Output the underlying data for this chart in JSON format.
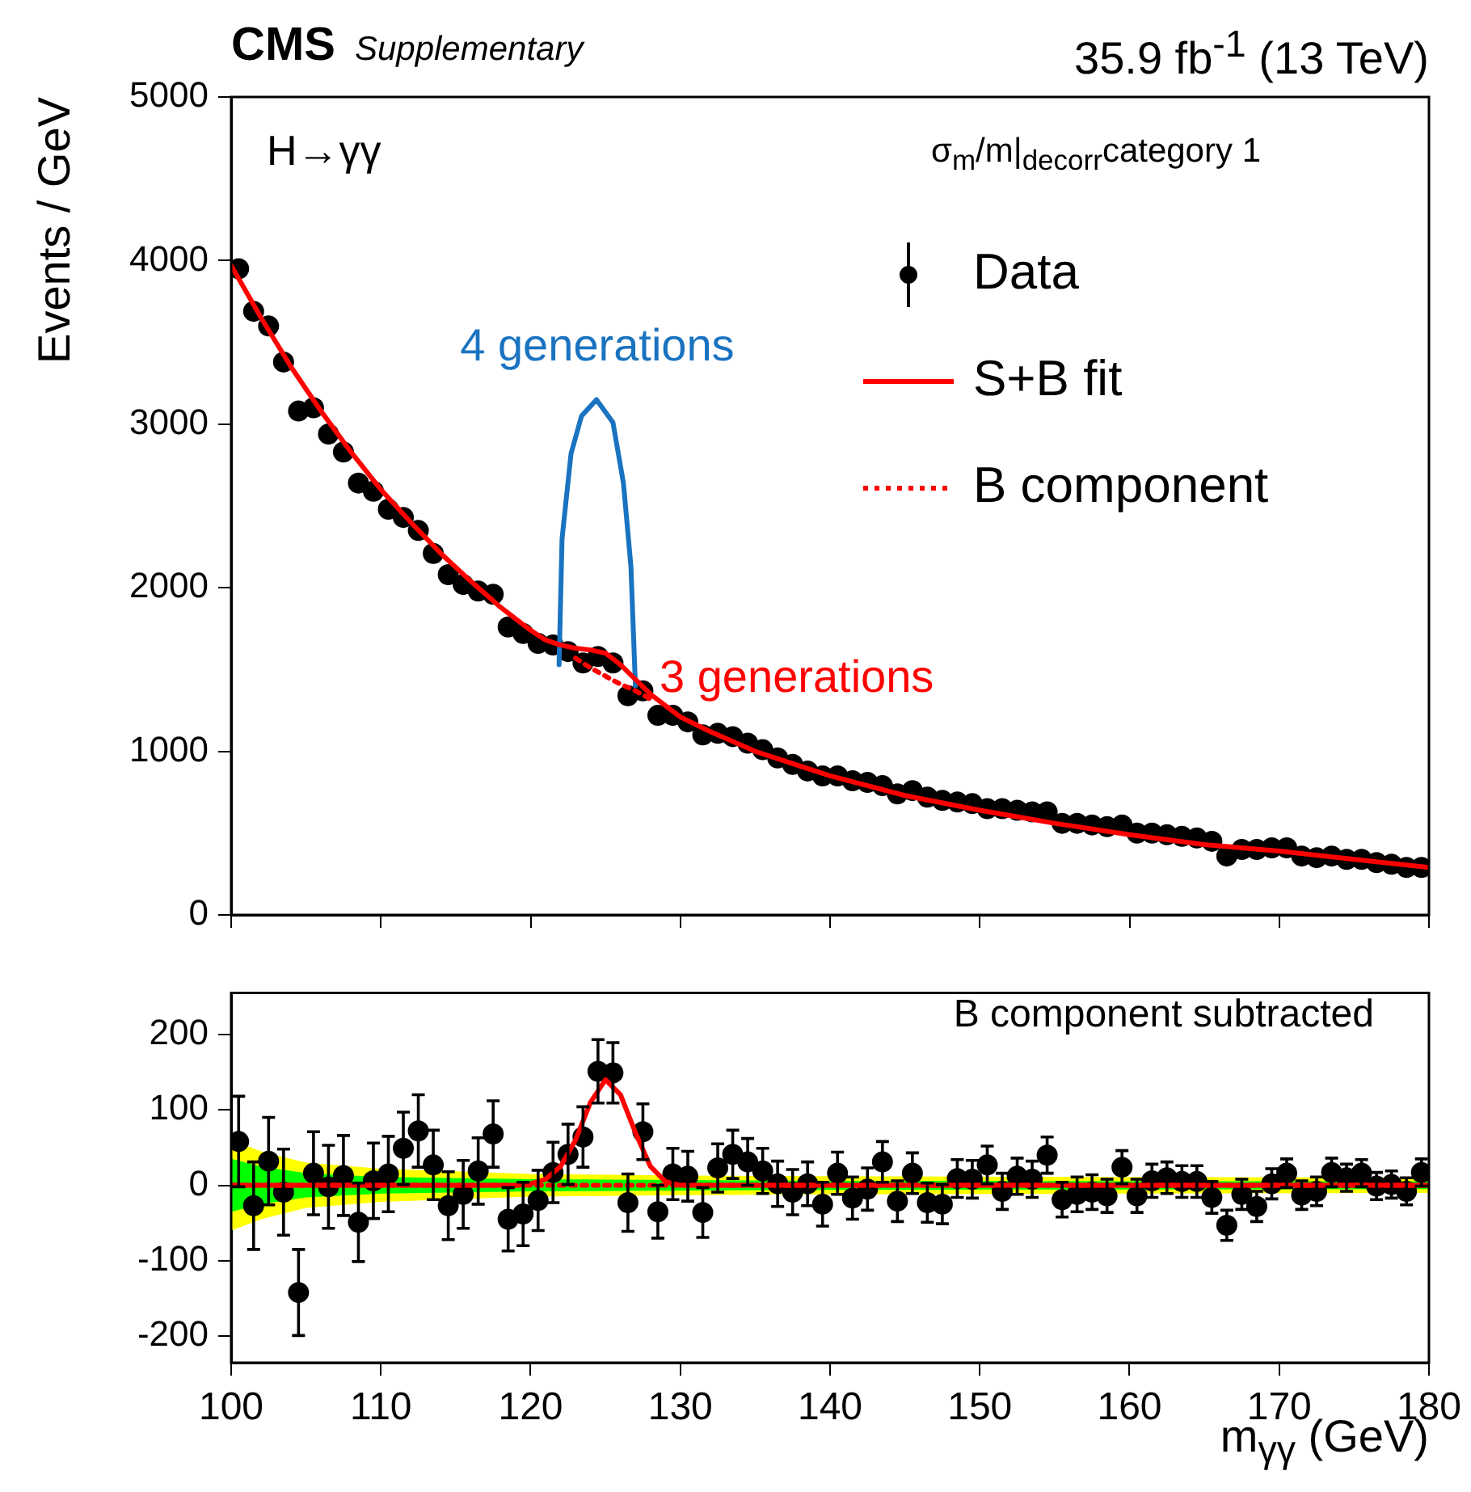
{
  "chart_data": [
    {
      "type": "scatter",
      "title": "CMS",
      "subtitle": "Supplementary",
      "ylabel": "Events / GeV",
      "legend_title": "σ$_{m}$/m|$_{decorr}$category 1",
      "legend": "top right",
      "tick_labels": "y",
      "annotations": [
        "35.9 fb$^{-1}$ (13 TeV)",
        "H→γγ",
        "3 generations"
      ],
      "xlim": [
        100,
        180
      ],
      "xticks": [
        100,
        110,
        120,
        130,
        140,
        150,
        160,
        170,
        180
      ],
      "ylim": [
        0,
        5000
      ],
      "yticks": [
        0,
        1000,
        2000,
        3000,
        4000,
        5000
      ],
      "series": [
        {
          "name": "Data",
          "marker": "circle",
          "color": "#000000",
          "x": [
            100.5,
            101.5,
            102.5,
            103.5,
            104.5,
            105.5,
            106.5,
            107.5,
            108.5,
            109.5,
            110.5,
            111.5,
            112.5,
            113.5,
            114.5,
            115.5,
            116.5,
            117.5,
            118.5,
            119.5,
            120.5,
            121.5,
            122.5,
            123.5,
            124.5,
            125.5,
            126.5,
            127.5,
            128.5,
            129.5,
            130.5,
            131.5,
            132.5,
            133.5,
            134.5,
            135.5,
            136.5,
            137.5,
            138.5,
            139.5,
            140.5,
            141.5,
            142.5,
            143.5,
            144.5,
            145.5,
            146.5,
            147.5,
            148.5,
            149.5,
            150.5,
            151.5,
            152.5,
            153.5,
            154.5,
            155.5,
            156.5,
            157.5,
            158.5,
            159.5,
            160.5,
            161.5,
            162.5,
            163.5,
            164.5,
            165.5,
            166.5,
            167.5,
            168.5,
            169.5,
            170.5,
            171.5,
            172.5,
            173.5,
            174.5,
            175.5,
            176.5,
            177.5,
            178.5,
            179.5
          ],
          "values": [
            3950,
            3690,
            3600,
            3380,
            3080,
            3100,
            2940,
            2830,
            2640,
            2590,
            2480,
            2430,
            2350,
            2210,
            2080,
            2020,
            1980,
            1960,
            1760,
            1720,
            1660,
            1650,
            1610,
            1540,
            1580,
            1540,
            1340,
            1370,
            1220,
            1220,
            1180,
            1100,
            1110,
            1090,
            1050,
            1010,
            960,
            920,
            880,
            850,
            850,
            820,
            810,
            790,
            740,
            760,
            720,
            700,
            690,
            680,
            650,
            650,
            640,
            630,
            630,
            560,
            560,
            550,
            540,
            550,
            500,
            500,
            490,
            480,
            470,
            450,
            360,
            400,
            400,
            410,
            410,
            360,
            350,
            360,
            340,
            340,
            320,
            310,
            290,
            290
          ]
        },
        {
          "name": "S+B fit",
          "type": "line",
          "color": "#ff0000",
          "x": [
            100,
            102,
            104,
            106,
            108,
            110,
            112,
            114,
            116,
            118,
            120,
            121,
            122,
            123,
            124,
            125,
            126,
            127,
            128,
            130,
            132,
            135,
            140,
            145,
            150,
            155,
            160,
            165,
            170,
            175,
            180
          ],
          "values": [
            3970,
            3650,
            3350,
            3080,
            2830,
            2600,
            2400,
            2210,
            2040,
            1880,
            1740,
            1680,
            1650,
            1630,
            1620,
            1600,
            1530,
            1440,
            1350,
            1210,
            1120,
            1000,
            850,
            730,
            640,
            560,
            490,
            430,
            390,
            340,
            290
          ]
        },
        {
          "name": "B component",
          "type": "line",
          "line_style": "dotted",
          "color": "#ff0000",
          "x": [
            123,
            124,
            125,
            126,
            127,
            128
          ],
          "values": [
            1570,
            1510,
            1460,
            1410,
            1370,
            1320
          ]
        },
        {
          "name": "4 generations",
          "type": "line",
          "color": "#1a73c0",
          "x": [
            121.9,
            122.1,
            122.7,
            123.4,
            124.4,
            125.5,
            126.2,
            126.7,
            127.0
          ],
          "values": [
            1530,
            2300,
            2820,
            3050,
            3150,
            3010,
            2640,
            2130,
            1400
          ]
        }
      ]
    },
    {
      "type": "scatter",
      "xlabel": "m$_{γγ}$ (GeV)",
      "annotations": [
        "B component subtracted"
      ],
      "xlim": [
        100,
        180
      ],
      "xticks": [
        100,
        110,
        120,
        130,
        140,
        150,
        160,
        170,
        180
      ],
      "ylim": [
        -235,
        255
      ],
      "yticks": [
        -200,
        -100,
        0,
        100,
        200
      ],
      "legend": false,
      "series": [
        {
          "type": "line",
          "color": "#ffff00",
          "x": [
            100,
            102,
            105,
            110,
            120,
            130,
            140,
            160,
            180
          ],
          "values": [
            null,
            null,
            null,
            null,
            null,
            null,
            null,
            null,
            null
          ],
          "lower": [
            -60,
            -45,
            -30,
            -22,
            -15,
            -13,
            -12,
            -11,
            -10
          ],
          "upper": [
            60,
            45,
            30,
            22,
            15,
            13,
            12,
            11,
            10
          ]
        },
        {
          "type": "line",
          "color": "#00ff00",
          "x": [
            100,
            102,
            105,
            110,
            120,
            130,
            140,
            160,
            180
          ],
          "values": [
            null,
            null,
            null,
            null,
            null,
            null,
            null,
            null,
            null
          ],
          "lower": [
            -35,
            -25,
            -16,
            -11,
            -8,
            -7,
            -6,
            -5.5,
            -5
          ],
          "upper": [
            35,
            25,
            16,
            11,
            8,
            7,
            6,
            5.5,
            5
          ]
        },
        {
          "type": "line",
          "line_style": "dotted",
          "color": "#ff0000",
          "x": [
            100,
            180
          ],
          "values": [
            0,
            0
          ]
        },
        {
          "type": "line",
          "color": "#ff0000",
          "x": [
            100,
            119,
            120,
            121,
            122,
            123,
            124,
            125,
            126,
            127,
            128,
            129,
            130,
            180
          ],
          "values": [
            0,
            0,
            2,
            8,
            25,
            60,
            110,
            140,
            120,
            70,
            25,
            5,
            0,
            0
          ]
        },
        {
          "marker": "circle",
          "color": "#000000",
          "x": [
            100.5,
            101.5,
            102.5,
            103.5,
            104.5,
            105.5,
            106.5,
            107.5,
            108.5,
            109.5,
            110.5,
            111.5,
            112.5,
            113.5,
            114.5,
            115.5,
            116.5,
            117.5,
            118.5,
            119.5,
            120.5,
            121.5,
            122.5,
            123.5,
            124.5,
            125.5,
            126.5,
            127.5,
            128.5,
            129.5,
            130.5,
            131.5,
            132.5,
            133.5,
            134.5,
            135.5,
            136.5,
            137.5,
            138.5,
            139.5,
            140.5,
            141.5,
            142.5,
            143.5,
            144.5,
            145.5,
            146.5,
            147.5,
            148.5,
            149.5,
            150.5,
            151.5,
            152.5,
            153.5,
            154.5,
            155.5,
            156.5,
            157.5,
            158.5,
            159.5,
            160.5,
            161.5,
            162.5,
            163.5,
            164.5,
            165.5,
            166.5,
            167.5,
            168.5,
            169.5,
            170.5,
            171.5,
            172.5,
            173.5,
            174.5,
            175.5,
            176.5,
            177.5,
            178.5,
            179.5
          ],
          "values": [
            58,
            -27,
            32,
            -9,
            -142,
            16,
            -2,
            13,
            -49,
            6,
            15,
            49,
            72,
            27,
            -27,
            -12,
            19,
            68,
            -45,
            -38,
            -20,
            17,
            41,
            64,
            151,
            149,
            -23,
            71,
            -35,
            15,
            12,
            -36,
            23,
            41,
            31,
            19,
            2,
            -9,
            2,
            -25,
            16,
            -17,
            -5,
            31,
            -21,
            16,
            -23,
            -25,
            9,
            8,
            27,
            -8,
            12,
            8,
            40,
            -19,
            -12,
            -9,
            -14,
            24,
            -14,
            6,
            10,
            5,
            5,
            -16,
            -53,
            -12,
            -28,
            2,
            16,
            -13,
            -8,
            17,
            10,
            16,
            -1,
            1,
            -8,
            17
          ],
          "errors": [
            60,
            58,
            58,
            57,
            57,
            55,
            55,
            53,
            52,
            50,
            50,
            48,
            48,
            46,
            45,
            45,
            44,
            44,
            42,
            42,
            40,
            40,
            40,
            40,
            42,
            40,
            38,
            37,
            35,
            34,
            33,
            33,
            32,
            32,
            31,
            30,
            30,
            30,
            29,
            29,
            28,
            28,
            28,
            27,
            27,
            27,
            26,
            26,
            25,
            25,
            25,
            24,
            24,
            24,
            24,
            23,
            23,
            23,
            22,
            22,
            22,
            22,
            21,
            21,
            21,
            21,
            20,
            20,
            20,
            20,
            19,
            19,
            19,
            19,
            18,
            18,
            18,
            18,
            18,
            18
          ]
        }
      ]
    }
  ]
}
